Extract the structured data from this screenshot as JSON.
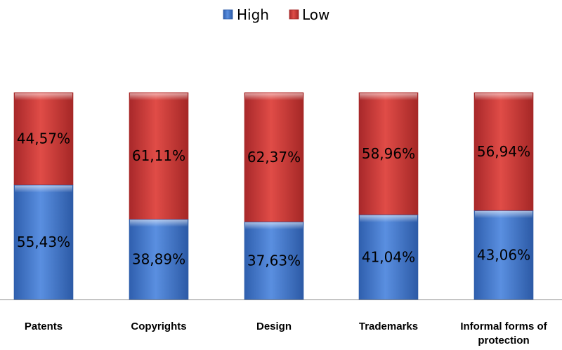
{
  "chart_data": {
    "type": "bar",
    "stacked": true,
    "categories": [
      "Patents",
      "Copyrights",
      "Design",
      "Trademarks",
      "Informal forms of protection"
    ],
    "series": [
      {
        "name": "High",
        "values": [
          55.43,
          38.89,
          37.63,
          41.04,
          43.06
        ],
        "labels": [
          "55,43%",
          "38,89%",
          "37,63%",
          "41,04%",
          "43,06%"
        ]
      },
      {
        "name": "Low",
        "values": [
          44.57,
          61.11,
          62.37,
          58.96,
          56.94
        ],
        "labels": [
          "44,57%",
          "61,11%",
          "62,37%",
          "58,96%",
          "56,94%"
        ]
      }
    ],
    "ylim": [
      0,
      100
    ],
    "grid": false,
    "legend_position": "top",
    "colors": {
      "High": "#3f74c8",
      "Low": "#c83a35"
    }
  }
}
